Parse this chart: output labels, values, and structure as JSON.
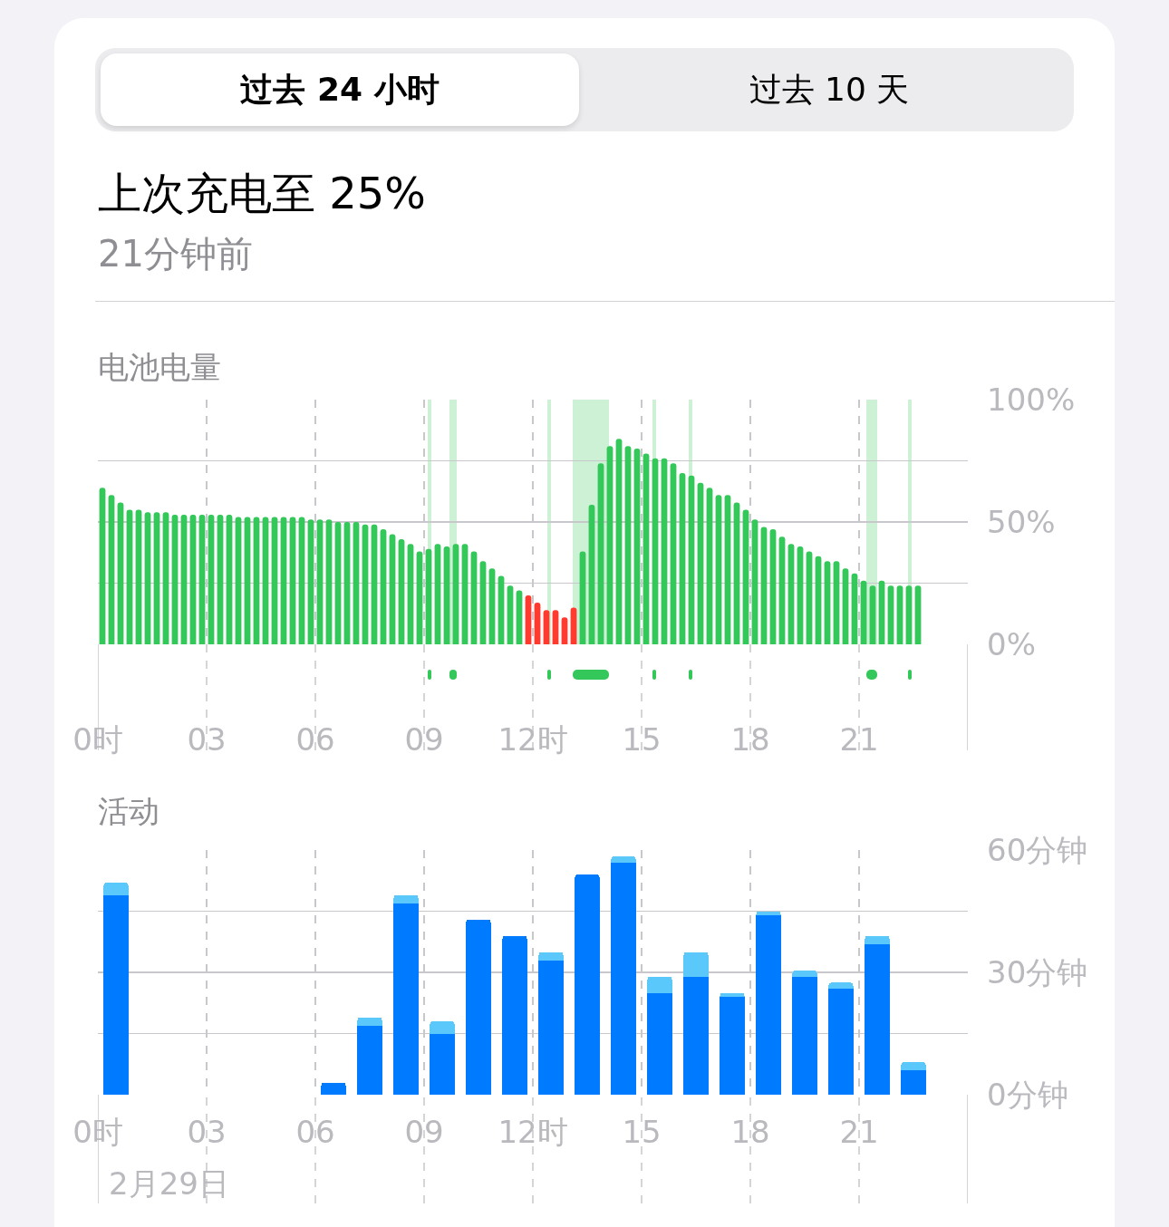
{
  "chart_data": [
    {
      "type": "other",
      "title": "上次充电至 25%",
      "subtitle": "21分钟前",
      "annotations": [
        "过去 24 小时",
        "过去 10 天"
      ]
    },
    {
      "type": "bar",
      "title": "电池电量",
      "x": [
        0.125,
        0.375,
        0.625,
        0.875,
        1.125,
        1.375,
        1.625,
        1.875,
        2.125,
        2.375,
        2.625,
        2.875,
        3.125,
        3.375,
        3.625,
        3.875,
        4.125,
        4.375,
        4.625,
        4.875,
        5.125,
        5.375,
        5.625,
        5.875,
        6.125,
        6.375,
        6.625,
        6.875,
        7.125,
        7.375,
        7.625,
        7.875,
        8.125,
        8.375,
        8.625,
        8.875,
        9.125,
        9.375,
        9.625,
        9.875,
        10.125,
        10.375,
        10.625,
        10.875,
        11.125,
        11.375,
        11.625,
        11.875,
        12.125,
        12.375,
        12.625,
        12.875,
        13.125,
        13.375,
        13.625,
        13.875,
        14.125,
        14.375,
        14.625,
        14.875,
        15.125,
        15.375,
        15.625,
        15.875,
        16.125,
        16.375,
        16.625,
        16.875,
        17.125,
        17.375,
        17.625,
        17.875,
        18.125,
        18.375,
        18.625,
        18.875,
        19.125,
        19.375,
        19.625,
        19.875,
        20.125,
        20.375,
        20.625,
        20.875,
        21.125,
        21.375,
        21.625,
        21.875,
        22.125,
        22.375,
        22.625
      ],
      "values": [
        64,
        61,
        58,
        55,
        55,
        54,
        54,
        54,
        53,
        53,
        53,
        53,
        53,
        53,
        53,
        52,
        52,
        52,
        52,
        52,
        52,
        52,
        52,
        51,
        51,
        51,
        50,
        50,
        50,
        49,
        49,
        47,
        45,
        43,
        41,
        38,
        39,
        41,
        40,
        41,
        41,
        38,
        34,
        31,
        28,
        24,
        22,
        20,
        17,
        14,
        14,
        11,
        15,
        38,
        57,
        74,
        81,
        84,
        81,
        80,
        78,
        76,
        76,
        74,
        70,
        69,
        66,
        64,
        61,
        61,
        58,
        55,
        51,
        48,
        47,
        44,
        41,
        40,
        38,
        36,
        34,
        34,
        31,
        29,
        26,
        24,
        26,
        24,
        24,
        24,
        24
      ],
      "colors": [
        "#34c759",
        "#34c759",
        "#34c759",
        "#34c759",
        "#34c759",
        "#34c759",
        "#34c759",
        "#34c759",
        "#34c759",
        "#34c759",
        "#34c759",
        "#34c759",
        "#34c759",
        "#34c759",
        "#34c759",
        "#34c759",
        "#34c759",
        "#34c759",
        "#34c759",
        "#34c759",
        "#34c759",
        "#34c759",
        "#34c759",
        "#34c759",
        "#34c759",
        "#34c759",
        "#34c759",
        "#34c759",
        "#34c759",
        "#34c759",
        "#34c759",
        "#34c759",
        "#34c759",
        "#34c759",
        "#34c759",
        "#34c759",
        "#34c759",
        "#34c759",
        "#34c759",
        "#34c759",
        "#34c759",
        "#34c759",
        "#34c759",
        "#34c759",
        "#34c759",
        "#34c759",
        "#34c759",
        "#ff3b30",
        "#ff3b30",
        "#ff3b30",
        "#ff3b30",
        "#ff3b30",
        "#ff3b30",
        "#34c759",
        "#34c759",
        "#34c759",
        "#34c759",
        "#34c759",
        "#34c759",
        "#34c759",
        "#34c759",
        "#34c759",
        "#34c759",
        "#34c759",
        "#34c759",
        "#34c759",
        "#34c759",
        "#34c759",
        "#34c759",
        "#34c759",
        "#34c759",
        "#34c759",
        "#34c759",
        "#34c759",
        "#34c759",
        "#34c759",
        "#34c759",
        "#34c759",
        "#34c759",
        "#34c759",
        "#34c759",
        "#34c759",
        "#34c759",
        "#34c759",
        "#34c759",
        "#34c759",
        "#34c759",
        "#34c759",
        "#34c759",
        "#34c759",
        "#34c759"
      ],
      "xlim": [
        0,
        24
      ],
      "xticks": [
        {
          "value": 0,
          "label": "0时"
        },
        {
          "value": 3,
          "label": "03"
        },
        {
          "value": 6,
          "label": "06"
        },
        {
          "value": 9,
          "label": "09"
        },
        {
          "value": 12,
          "label": "12时"
        },
        {
          "value": 15,
          "label": "15"
        },
        {
          "value": 18,
          "label": "18"
        },
        {
          "value": 21,
          "label": "21"
        }
      ],
      "ylim": [
        0,
        100
      ],
      "yticks": [
        {
          "value": 0,
          "label": "0%"
        },
        {
          "value": 25,
          "label": null
        },
        {
          "value": 50,
          "label": "50%"
        },
        {
          "value": 75,
          "label": null
        },
        {
          "value": 100,
          "label": "100%"
        }
      ],
      "grid": true,
      "bands": [
        {
          "axis": "x",
          "from": 9.1,
          "to": 9.2,
          "color": "#34c759"
        },
        {
          "axis": "x",
          "from": 9.7,
          "to": 9.9,
          "color": "#34c759"
        },
        {
          "axis": "x",
          "from": 12.4,
          "to": 12.5,
          "color": "#34c759"
        },
        {
          "axis": "x",
          "from": 13.1,
          "to": 14.1,
          "color": "#34c759"
        },
        {
          "axis": "x",
          "from": 15.3,
          "to": 15.4,
          "color": "#34c759"
        },
        {
          "axis": "x",
          "from": 16.3,
          "to": 16.4,
          "color": "#34c759"
        },
        {
          "axis": "x",
          "from": 21.2,
          "to": 21.5,
          "color": "#34c759"
        },
        {
          "axis": "x",
          "from": 22.35,
          "to": 22.45,
          "color": "#34c759"
        }
      ]
    },
    {
      "type": "bar",
      "title": "活动",
      "stacked": true,
      "x": [
        0.5,
        6.5,
        7.5,
        8.5,
        9.5,
        10.5,
        11.5,
        12.5,
        13.5,
        14.5,
        15.5,
        16.5,
        17.5,
        18.5,
        19.5,
        20.5,
        21.5,
        22.5
      ],
      "series": [
        {
          "color": "#007aff",
          "values": [
            49,
            3,
            17,
            47,
            15,
            43,
            39,
            33,
            54,
            57,
            25,
            29,
            24,
            44,
            29,
            26,
            37,
            6
          ]
        },
        {
          "color": "#5ac8fa",
          "values": [
            3,
            null,
            2,
            2,
            3,
            null,
            null,
            2,
            null,
            1.5,
            4,
            6,
            1,
            1,
            1.5,
            1.5,
            2,
            2
          ]
        }
      ],
      "xlim": [
        0,
        24
      ],
      "xticks": [
        {
          "value": 0,
          "label": "0时"
        },
        {
          "value": 3,
          "label": "03"
        },
        {
          "value": 6,
          "label": "06"
        },
        {
          "value": 9,
          "label": "09"
        },
        {
          "value": 12,
          "label": "12时"
        },
        {
          "value": 15,
          "label": "15"
        },
        {
          "value": 18,
          "label": "18"
        },
        {
          "value": 21,
          "label": "21"
        }
      ],
      "ylim": [
        0,
        60
      ],
      "yticks": [
        {
          "value": 0,
          "label": "0分钟"
        },
        {
          "value": 15,
          "label": null
        },
        {
          "value": 30,
          "label": "30分钟"
        },
        {
          "value": 45,
          "label": null
        },
        {
          "value": 60,
          "label": "60分钟"
        }
      ],
      "grid": true,
      "annotations": [
        "2月29日"
      ]
    }
  ]
}
